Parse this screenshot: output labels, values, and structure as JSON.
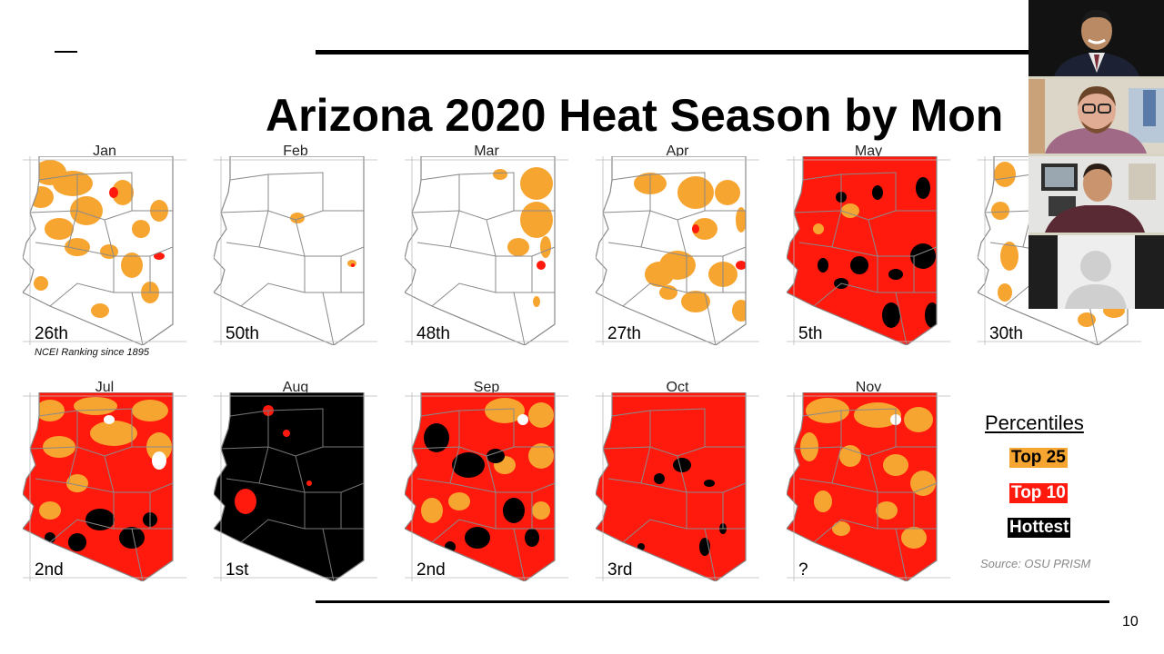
{
  "slide": {
    "title": "Arizona 2020 Heat Season by Mon",
    "page_number": "10",
    "note": "NCEI Ranking since 1895",
    "source": "Source: OSU PRISM"
  },
  "panels": [
    {
      "month": "Jan",
      "rank": "26th"
    },
    {
      "month": "Feb",
      "rank": "50th"
    },
    {
      "month": "Mar",
      "rank": "48th"
    },
    {
      "month": "Apr",
      "rank": "27th"
    },
    {
      "month": "May",
      "rank": "5th"
    },
    {
      "month": "",
      "rank": "30th"
    },
    {
      "month": "Jul",
      "rank": "2nd"
    },
    {
      "month": "Aug",
      "rank": "1st"
    },
    {
      "month": "Sep",
      "rank": "2nd"
    },
    {
      "month": "Oct",
      "rank": "3rd"
    },
    {
      "month": "Nov",
      "rank": "?"
    }
  ],
  "legend": {
    "title": "Percentiles",
    "items": [
      {
        "label": "Top 25",
        "color": "#f7a531",
        "text_color": "#000000"
      },
      {
        "label": "Top 10",
        "color": "#ff1a0d",
        "text_color": "#ffffff"
      },
      {
        "label": "Hottest",
        "color": "#000000",
        "text_color": "#ffffff"
      }
    ]
  },
  "colors": {
    "top25": "#f7a531",
    "top10": "#ff1a0d",
    "hottest": "#000000",
    "border": "#888888"
  },
  "participants": [
    {
      "avatar": "person-in-suit"
    },
    {
      "avatar": "person-with-glasses"
    },
    {
      "avatar": "person-in-sweater"
    },
    {
      "avatar": "default-user-icon"
    }
  ]
}
